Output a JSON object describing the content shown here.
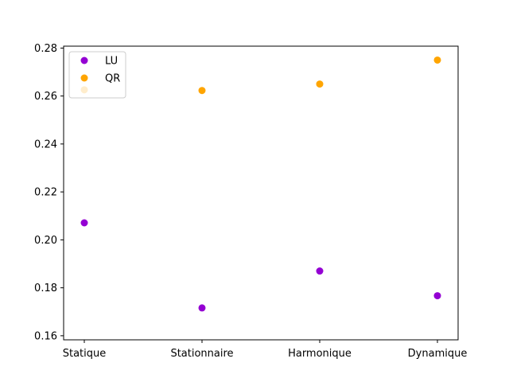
{
  "chart_data": {
    "type": "scatter",
    "categories": [
      "Statique",
      "Stationnaire",
      "Harmonique",
      "Dynamique"
    ],
    "series": [
      {
        "name": "LU",
        "color": "#9400d3",
        "values": [
          0.2071,
          0.1716,
          0.187,
          0.1767
        ]
      },
      {
        "name": "QR",
        "color": "#ffa500",
        "values": [
          0.2626,
          0.2623,
          0.265,
          0.275
        ]
      }
    ],
    "yticks": [
      "0.16",
      "0.18",
      "0.20",
      "0.22",
      "0.24",
      "0.26",
      "0.28"
    ],
    "ylim": [
      0.1583,
      0.2808
    ],
    "grid": false,
    "legend_position": "top-left",
    "title": "",
    "xlabel": "",
    "ylabel": ""
  }
}
